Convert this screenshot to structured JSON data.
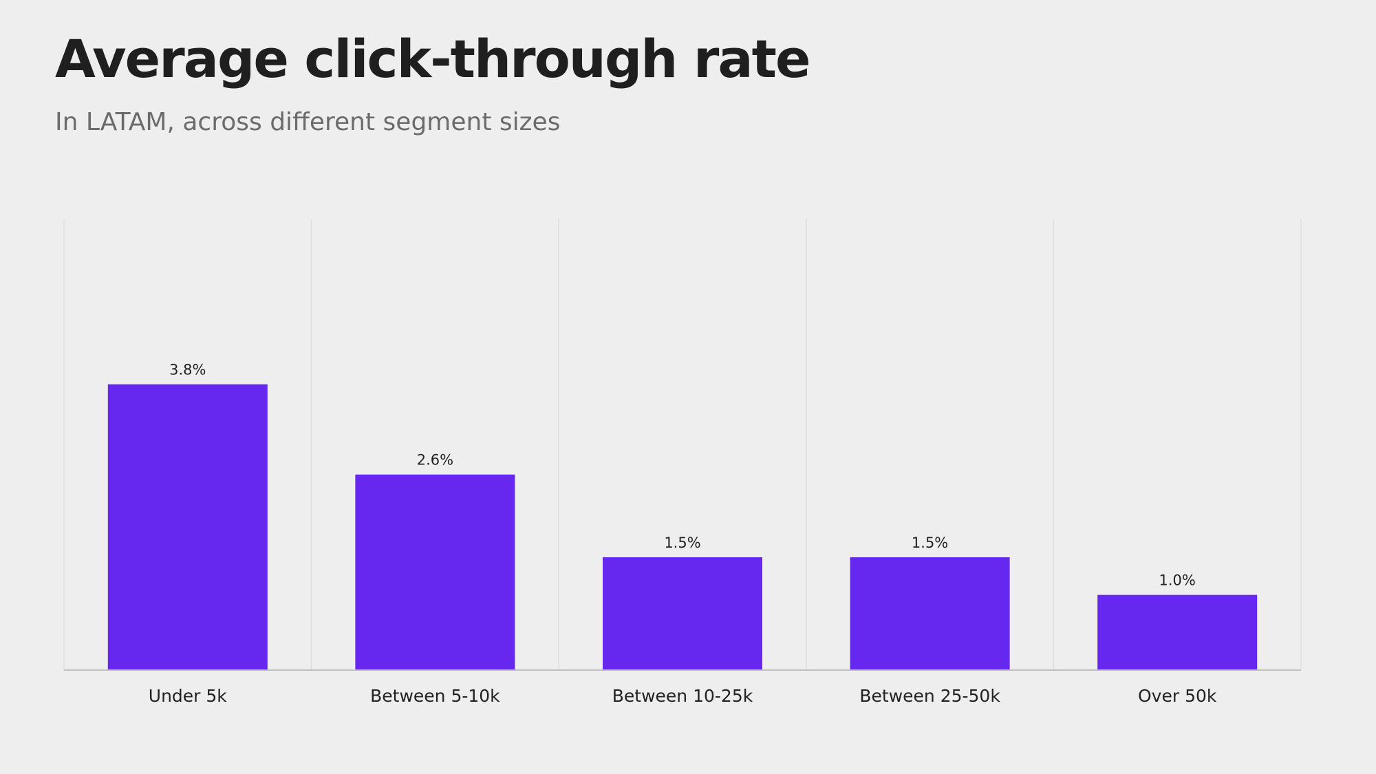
{
  "header": {
    "title": "Average click-through rate",
    "subtitle": "In LATAM, across different segment sizes"
  },
  "colors": {
    "bar": "#6628ee",
    "background": "#eeeeee",
    "gridline": "#dddddd",
    "axis": "#bfbfbf"
  },
  "chart_data": {
    "type": "bar",
    "title": "Average click-through rate",
    "subtitle": "In LATAM, across different segment sizes",
    "categories": [
      "Under 5k",
      "Between 5-10k",
      "Between 10-25k",
      "Between 25-50k",
      "Over 50k"
    ],
    "values": [
      3.8,
      2.6,
      1.5,
      1.5,
      1.0
    ],
    "data_labels": [
      "3.8%",
      "2.6%",
      "1.5%",
      "1.5%",
      "1.0%"
    ],
    "unit": "%",
    "xlabel": "",
    "ylabel": "",
    "ylim": [
      0,
      6.0
    ],
    "grid": "vertical category separators",
    "legend": "none"
  }
}
